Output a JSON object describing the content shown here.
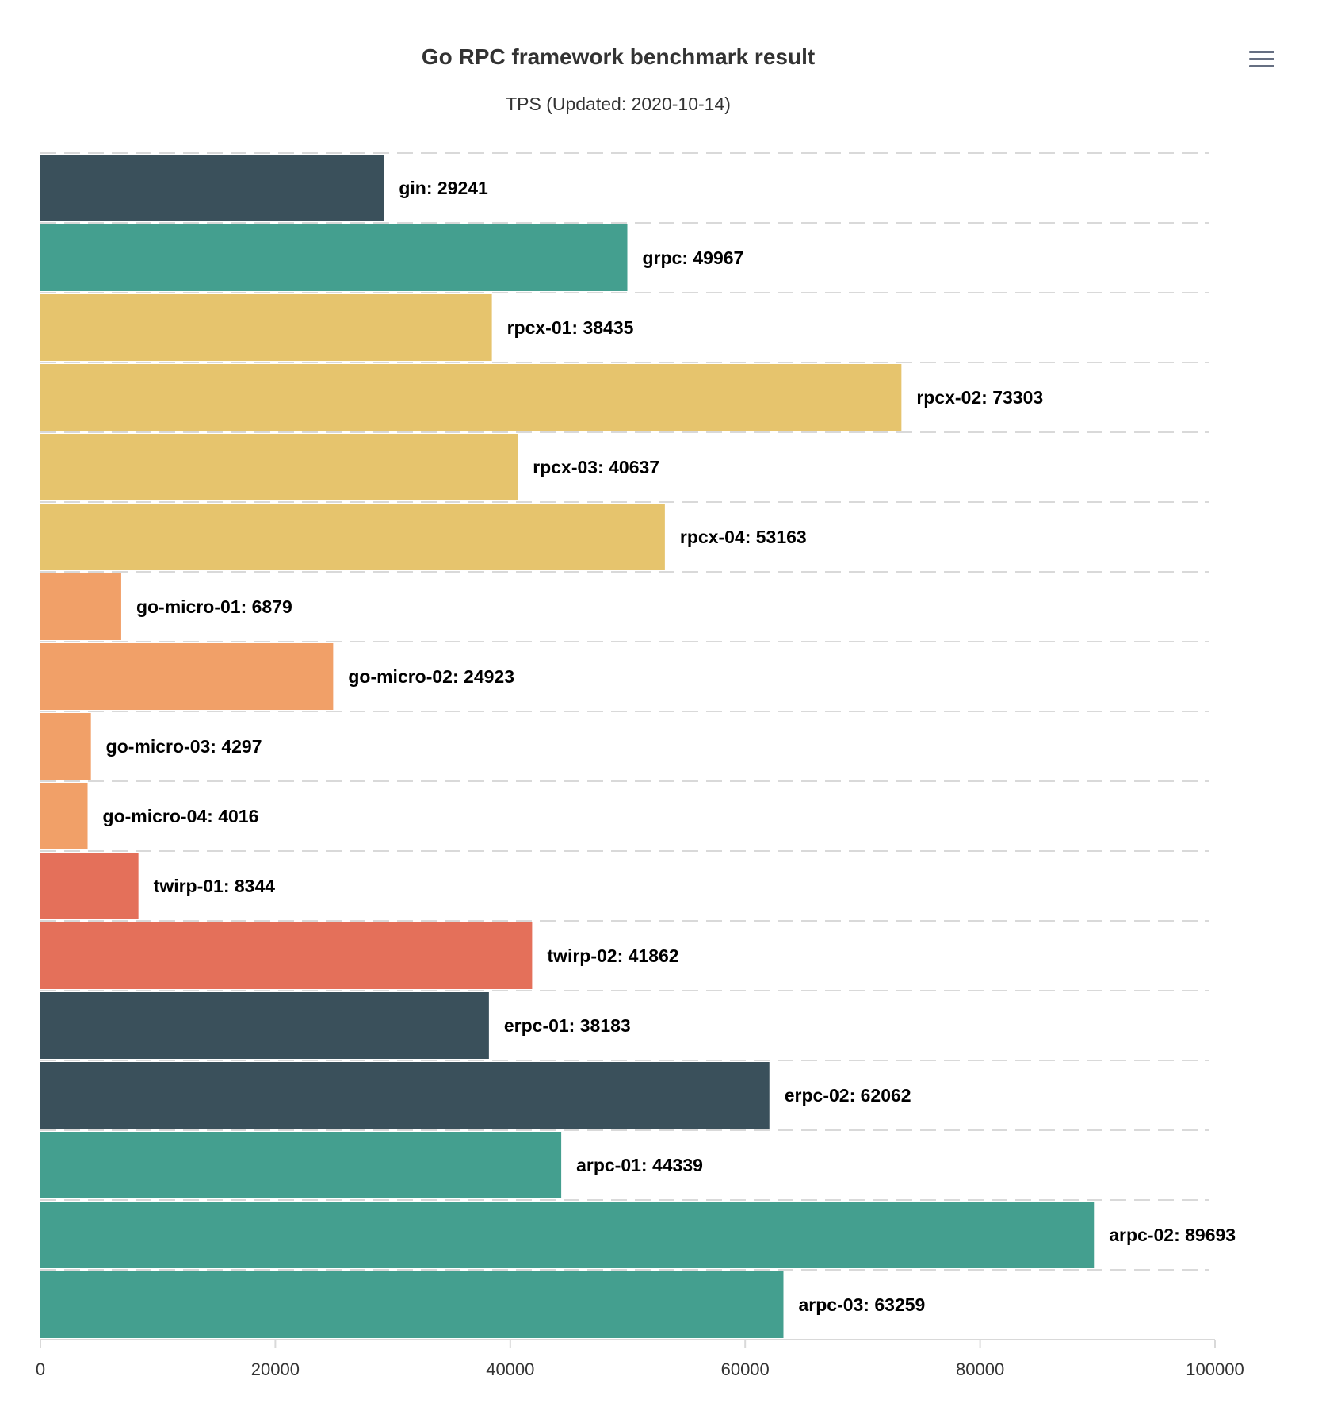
{
  "chart_data": {
    "type": "bar",
    "orientation": "horizontal",
    "title": "Go RPC framework benchmark result",
    "subtitle": "TPS (Updated: 2020-10-14)",
    "xlabel": "",
    "ylabel": "",
    "xlim": [
      0,
      100000
    ],
    "x_ticks": [
      0,
      20000,
      40000,
      60000,
      80000,
      100000
    ],
    "grid": "dashed horizontal",
    "legend": "none",
    "categories": [
      "gin",
      "grpc",
      "rpcx-01",
      "rpcx-02",
      "rpcx-03",
      "rpcx-04",
      "go-micro-01",
      "go-micro-02",
      "go-micro-03",
      "go-micro-04",
      "twirp-01",
      "twirp-02",
      "erpc-01",
      "erpc-02",
      "arpc-01",
      "arpc-02",
      "arpc-03"
    ],
    "values": [
      29241,
      49967,
      38435,
      73303,
      40637,
      53163,
      6879,
      24923,
      4297,
      4016,
      8344,
      41862,
      38183,
      62062,
      44339,
      89693,
      63259
    ],
    "labels": [
      "gin: 29241",
      "grpc: 49967",
      "rpcx-01: 38435",
      "rpcx-02: 73303",
      "rpcx-03: 40637",
      "rpcx-04: 53163",
      "go-micro-01: 6879",
      "go-micro-02: 24923",
      "go-micro-03: 4297",
      "go-micro-04: 4016",
      "twirp-01: 8344",
      "twirp-02: 41862",
      "erpc-01: 38183",
      "erpc-02: 62062",
      "arpc-01: 44339",
      "arpc-02: 89693",
      "arpc-03: 63259"
    ],
    "colors": [
      "#3a505b",
      "#449f8f",
      "#e6c46d",
      "#e6c46d",
      "#e6c46d",
      "#e6c46d",
      "#f1a068",
      "#f1a068",
      "#f1a068",
      "#f1a068",
      "#e4705a",
      "#e4705a",
      "#3a505b",
      "#3a505b",
      "#449f8f",
      "#449f8f",
      "#449f8f"
    ]
  },
  "toolbar": {
    "menu_icon": "hamburger-menu-icon"
  }
}
